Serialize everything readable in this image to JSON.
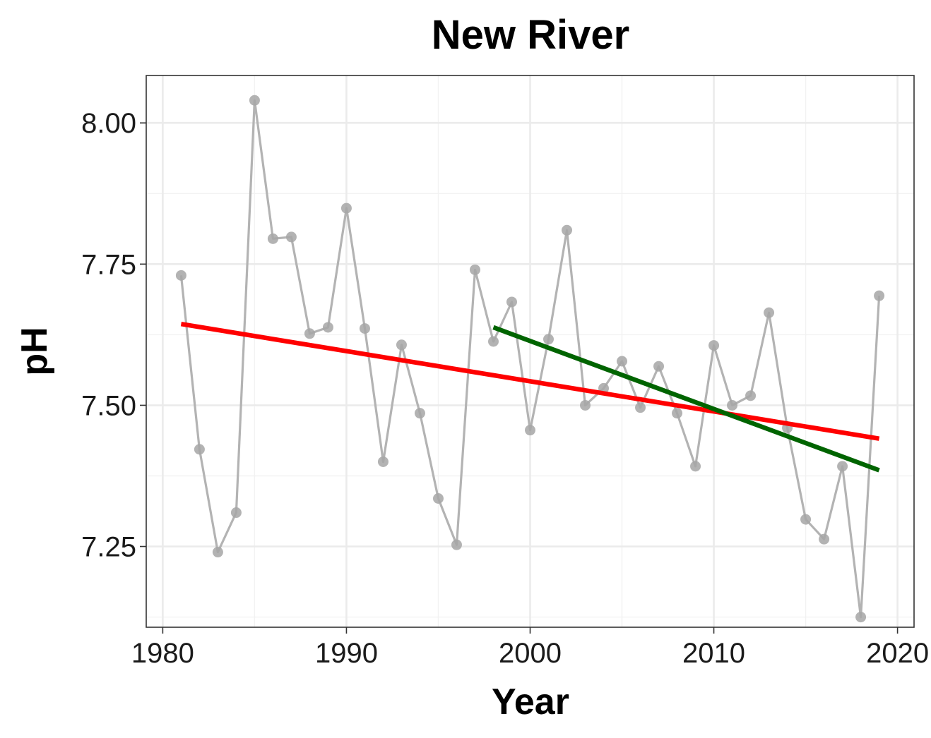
{
  "chart_data": {
    "type": "line",
    "title": "New River",
    "xlabel": "Year",
    "ylabel": "pH",
    "xlim": [
      1979.1,
      2020.9
    ],
    "ylim": [
      7.107,
      8.084
    ],
    "x_ticks": [
      1980,
      1990,
      2000,
      2010,
      2020
    ],
    "x_tick_labels": [
      "1980",
      "1990",
      "2000",
      "2010",
      "2020"
    ],
    "y_ticks": [
      7.25,
      7.5,
      7.75,
      8.0
    ],
    "y_tick_labels": [
      "7.25",
      "7.50",
      "7.75",
      "8.00"
    ],
    "x_minor_ticks": [
      1985,
      1995,
      2005,
      2015
    ],
    "y_minor_ticks": [
      7.125,
      7.375,
      7.625,
      7.875
    ],
    "grid": true,
    "legend": "none",
    "series": [
      {
        "color": "#b3b3b3",
        "x": [
          1981,
          1982,
          1983,
          1984,
          1985,
          1986,
          1987,
          1988,
          1989,
          1990,
          1991,
          1992,
          1993,
          1994,
          1995,
          1996,
          1997,
          1998,
          1999,
          2000,
          2001,
          2002,
          2003,
          2004,
          2005,
          2006,
          2007,
          2008,
          2009,
          2010,
          2011,
          2012,
          2013,
          2014,
          2015,
          2016,
          2017,
          2018,
          2019
        ],
        "values": [
          7.73,
          7.422,
          7.24,
          7.31,
          8.04,
          7.795,
          7.798,
          7.627,
          7.638,
          7.849,
          7.636,
          7.4,
          7.607,
          7.486,
          7.335,
          7.253,
          7.74,
          7.613,
          7.683,
          7.456,
          7.617,
          7.81,
          7.5,
          7.53,
          7.578,
          7.496,
          7.569,
          7.486,
          7.392,
          7.606,
          7.5,
          7.517,
          7.664,
          7.46,
          7.298,
          7.263,
          7.392,
          7.125,
          7.694
        ]
      }
    ],
    "trend_lines": [
      {
        "color": "#ff0000",
        "x": [
          1981,
          2019
        ],
        "values": [
          7.644,
          7.441
        ]
      },
      {
        "color": "#006400",
        "x": [
          1998,
          2019
        ],
        "values": [
          7.638,
          7.385
        ]
      }
    ]
  }
}
